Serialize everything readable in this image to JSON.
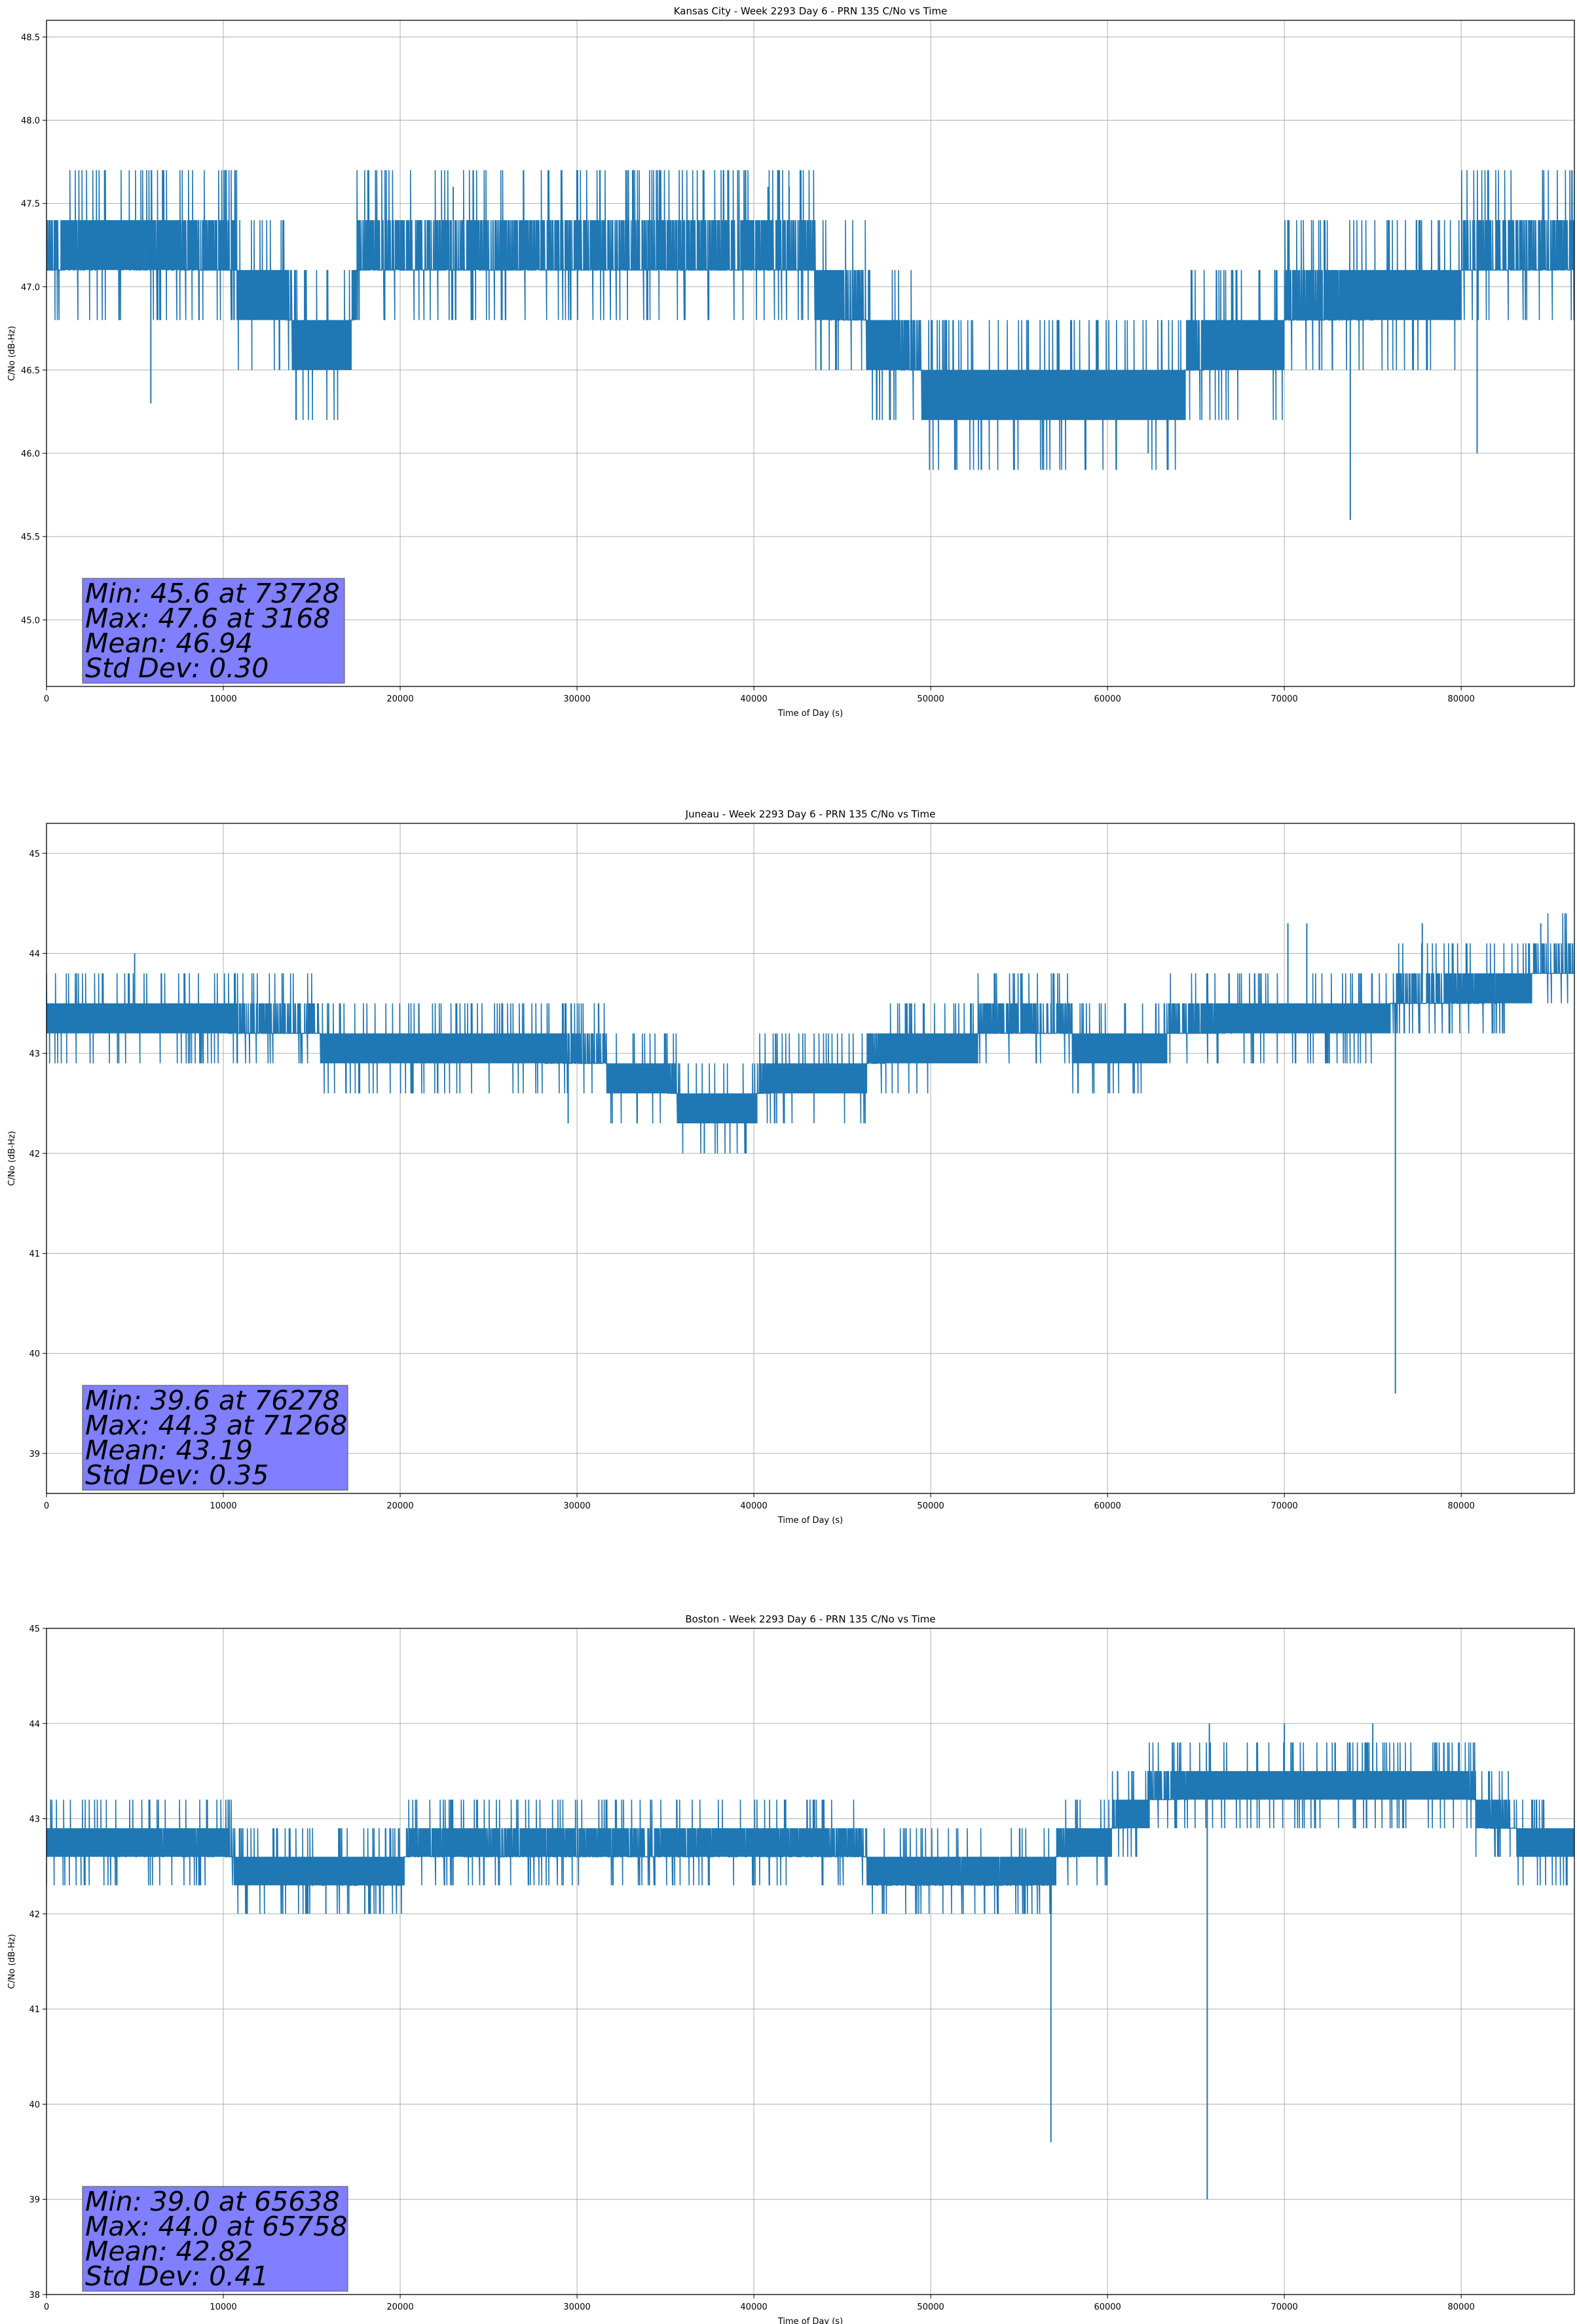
{
  "chart_data": [
    {
      "type": "line",
      "title": "Kansas City - Week 2293 Day 6 - PRN 135 C/No vs Time",
      "xlabel": "Time of Day (s)",
      "ylabel": "C/No (dB-Hz)",
      "xlim": [
        0,
        86400
      ],
      "ylim": [
        44.6,
        48.6
      ],
      "xticks": [
        0,
        10000,
        20000,
        30000,
        40000,
        50000,
        60000,
        70000,
        80000
      ],
      "yticks": [
        "45.0",
        "45.5",
        "46.0",
        "46.5",
        "47.0",
        "47.5",
        "48.0",
        "48.5"
      ],
      "grid": true,
      "color": "#1f77b4",
      "quantization": 0.3,
      "baseline": [
        [
          0,
          47.15
        ],
        [
          3000,
          47.3
        ],
        [
          8000,
          47.2
        ],
        [
          13500,
          47.0
        ],
        [
          14000,
          46.75
        ],
        [
          17200,
          46.75
        ],
        [
          17600,
          47.15
        ],
        [
          29500,
          47.15
        ],
        [
          40000,
          47.15
        ],
        [
          43500,
          47.1
        ],
        [
          44500,
          46.95
        ],
        [
          47000,
          46.75
        ],
        [
          50000,
          46.45
        ],
        [
          55000,
          46.45
        ],
        [
          60000,
          46.45
        ],
        [
          64000,
          46.45
        ],
        [
          66000,
          46.7
        ],
        [
          70000,
          46.8
        ],
        [
          74000,
          46.95
        ],
        [
          80000,
          47.1
        ],
        [
          86400,
          47.15
        ]
      ],
      "spikes": [
        [
          5900,
          46.3
        ],
        [
          62300,
          46.0
        ],
        [
          73728,
          45.6
        ],
        [
          80900,
          46.0
        ],
        [
          40800,
          47.6
        ],
        [
          42000,
          47.6
        ],
        [
          23000,
          47.6
        ]
      ],
      "stats": {
        "min": "Min: 45.6 at 73728",
        "max": "Max: 47.6 at 3168",
        "mean": "Mean: 46.94",
        "std": "Std Dev: 0.30"
      }
    },
    {
      "type": "line",
      "title": "Juneau - Week 2293 Day 6 - PRN 135 C/No vs Time",
      "xlabel": "Time of Day (s)",
      "ylabel": "C/No (dB-Hz)",
      "xlim": [
        0,
        86400
      ],
      "ylim": [
        38.6,
        45.3
      ],
      "xticks": [
        0,
        10000,
        20000,
        30000,
        40000,
        50000,
        60000,
        70000,
        80000
      ],
      "yticks": [
        "39",
        "40",
        "41",
        "42",
        "43",
        "44",
        "45"
      ],
      "grid": true,
      "color": "#1f77b4",
      "quantization": 0.3,
      "baseline": [
        [
          0,
          43.45
        ],
        [
          10000,
          43.4
        ],
        [
          11000,
          43.25
        ],
        [
          20000,
          43.15
        ],
        [
          28000,
          43.1
        ],
        [
          30000,
          42.95
        ],
        [
          35000,
          42.8
        ],
        [
          36000,
          42.5
        ],
        [
          40000,
          42.55
        ],
        [
          41000,
          42.8
        ],
        [
          46000,
          42.85
        ],
        [
          48000,
          43.1
        ],
        [
          55000,
          43.25
        ],
        [
          58000,
          43.2
        ],
        [
          62000,
          43.15
        ],
        [
          66000,
          43.3
        ],
        [
          68000,
          43.45
        ],
        [
          76000,
          43.5
        ],
        [
          80000,
          43.55
        ],
        [
          84000,
          43.8
        ],
        [
          86400,
          43.8
        ]
      ],
      "spikes": [
        [
          76278,
          39.6
        ],
        [
          4985,
          44.0
        ],
        [
          70200,
          44.3
        ],
        [
          71268,
          44.3
        ],
        [
          77800,
          44.3
        ],
        [
          84500,
          44.3
        ],
        [
          37200,
          42.0
        ],
        [
          29500,
          42.3
        ]
      ],
      "stats": {
        "min": "Min: 39.6 at 76278",
        "max": "Max: 44.3 at 71268",
        "mean": "Mean: 43.19",
        "std": "Std Dev: 0.35"
      }
    },
    {
      "type": "line",
      "title": "Boston - Week 2293 Day 6 - PRN 135 C/No vs Time",
      "xlabel": "Time of Day (s)",
      "ylabel": "C/No (dB-Hz)",
      "xlim": [
        0,
        86400
      ],
      "ylim": [
        38,
        45
      ],
      "xticks": [
        0,
        10000,
        20000,
        30000,
        40000,
        50000,
        60000,
        70000,
        80000
      ],
      "yticks": [
        "38",
        "39",
        "40",
        "41",
        "42",
        "43",
        "44",
        "45"
      ],
      "grid": true,
      "color": "#1f77b4",
      "quantization": 0.3,
      "baseline": [
        [
          0,
          42.8
        ],
        [
          10000,
          42.75
        ],
        [
          11000,
          42.5
        ],
        [
          20000,
          42.45
        ],
        [
          20500,
          42.75
        ],
        [
          30000,
          42.7
        ],
        [
          40000,
          42.75
        ],
        [
          46000,
          42.7
        ],
        [
          47000,
          42.45
        ],
        [
          56500,
          42.45
        ],
        [
          57500,
          42.7
        ],
        [
          60000,
          42.85
        ],
        [
          61500,
          43.15
        ],
        [
          64000,
          43.3
        ],
        [
          65000,
          43.45
        ],
        [
          80000,
          43.45
        ],
        [
          81500,
          43.0
        ],
        [
          84000,
          42.85
        ],
        [
          86400,
          42.9
        ]
      ],
      "spikes": [
        [
          56800,
          39.6
        ],
        [
          65638,
          39.0
        ],
        [
          65758,
          44.0
        ],
        [
          70000,
          44.0
        ],
        [
          75000,
          44.0
        ],
        [
          18000,
          42.0
        ],
        [
          15800,
          42.0
        ]
      ],
      "stats": {
        "min": "Min: 39.0 at 65638",
        "max": "Max: 44.0 at 65758",
        "mean": "Mean: 42.82",
        "std": "Std Dev: 0.41"
      }
    }
  ]
}
